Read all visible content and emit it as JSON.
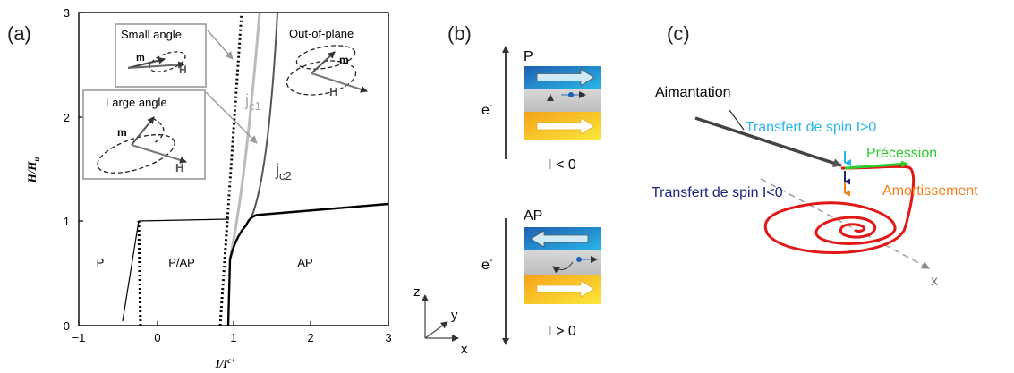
{
  "panel_a": {
    "label": "(a)",
    "x_axis_label": "I/I",
    "x_axis_label_sup": "c+",
    "y_axis_label": "H/H",
    "y_axis_label_sub": "u",
    "x_ticks": [
      "−1",
      "0",
      "1",
      "2",
      "3"
    ],
    "y_ticks": [
      "0",
      "1",
      "2",
      "3"
    ],
    "regions": {
      "p": "P",
      "p_ap": "P/AP",
      "ap": "AP"
    },
    "curve_labels": {
      "jc1": "j",
      "jc1_sub": "c1",
      "jc2": "j",
      "jc2_sub": "c2"
    },
    "insets": {
      "small_angle": {
        "title": "Small angle",
        "m": "m",
        "h": "H"
      },
      "large_angle": {
        "title": "Large angle",
        "m": "m",
        "h": "H"
      },
      "out_of_plane": {
        "title": "Out-of-plane",
        "m": "m",
        "h": "H"
      }
    }
  },
  "axes_triad": {
    "x": "x",
    "y": "y",
    "z": "z"
  },
  "panel_b": {
    "label": "(b)",
    "top": {
      "config": "P",
      "electron": "e",
      "electron_sup": "-",
      "current": "I < 0"
    },
    "bottom": {
      "config": "AP",
      "electron": "e",
      "electron_sup": "-",
      "current": "I > 0"
    }
  },
  "panel_c": {
    "label": "(c)",
    "magnetization": "Aimantation",
    "spin_transfer_pos": "Transfert de spin I>0",
    "precession": "Précession",
    "spin_transfer_neg": "Transfert de spin I<0",
    "damping": "Amortissement",
    "axis_x": "x",
    "colors": {
      "spin_transfer_pos": "#29b6e8",
      "precession": "#2ecc2e",
      "spin_transfer_neg": "#1a237e",
      "damping": "#f07f1c",
      "trajectory": "#e01818"
    }
  }
}
